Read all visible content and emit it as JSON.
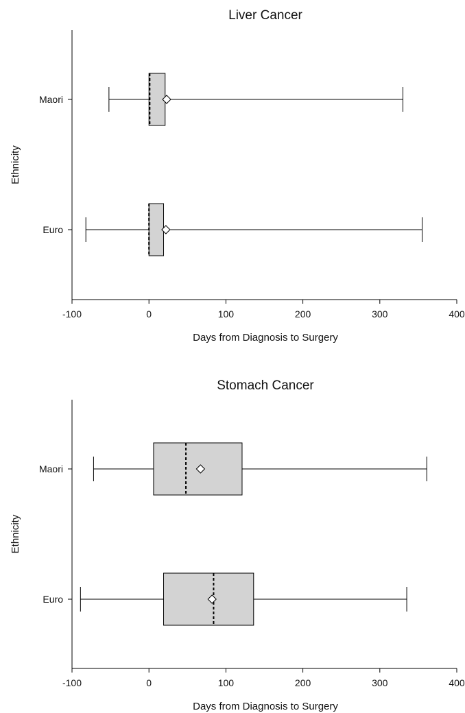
{
  "chart_data": [
    {
      "type": "boxplot",
      "title": "Liver Cancer",
      "xlabel": "Days from Diagnosis to Surgery",
      "ylabel": "Ethnicity",
      "xlim": [
        -100,
        400
      ],
      "xticks": [
        -100,
        0,
        100,
        200,
        300,
        400
      ],
      "categories": [
        "Maori",
        "Euro"
      ],
      "boxes": [
        {
          "category": "Maori",
          "whisker_low": -52,
          "q1": 0,
          "median": 1,
          "q3": 21,
          "whisker_high": 330,
          "mean": 23
        },
        {
          "category": "Euro",
          "whisker_low": -82,
          "q1": 0,
          "median": 0,
          "q3": 19,
          "whisker_high": 355,
          "mean": 22
        }
      ],
      "colors": {
        "box_fill": "#d3d3d3",
        "line": "#000000"
      }
    },
    {
      "type": "boxplot",
      "title": "Stomach Cancer",
      "xlabel": "Days from Diagnosis to Surgery",
      "ylabel": "Ethnicity",
      "xlim": [
        -100,
        400
      ],
      "xticks": [
        -100,
        0,
        100,
        200,
        300,
        400
      ],
      "categories": [
        "Maori",
        "Euro"
      ],
      "boxes": [
        {
          "category": "Maori",
          "whisker_low": -72,
          "q1": 6,
          "median": 48,
          "q3": 121,
          "whisker_high": 361,
          "mean": 67
        },
        {
          "category": "Euro",
          "whisker_low": -89,
          "q1": 19,
          "median": 84,
          "q3": 136,
          "whisker_high": 335,
          "mean": 82
        }
      ],
      "colors": {
        "box_fill": "#d3d3d3",
        "line": "#000000"
      }
    }
  ]
}
